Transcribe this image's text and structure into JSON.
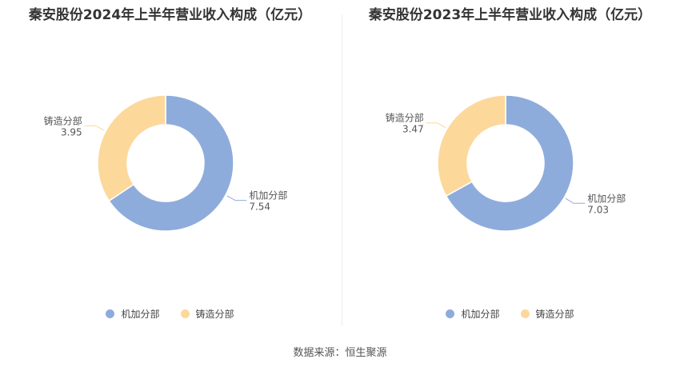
{
  "chart_data": [
    {
      "type": "pie",
      "title": "秦安股份2024年上半年营业收入构成（亿元）",
      "categories": [
        "机加分部",
        "铸造分部"
      ],
      "values": [
        7.54,
        3.95
      ],
      "value_labels": [
        "7.54",
        "3.95"
      ],
      "colors": [
        "#8eacdb",
        "#fdd89b"
      ],
      "legend": "bottom"
    },
    {
      "type": "pie",
      "title": "秦安股份2023年上半年营业收入构成（亿元）",
      "categories": [
        "机加分部",
        "铸造分部"
      ],
      "values": [
        7.03,
        3.47
      ],
      "value_labels": [
        "7.03",
        "3.47"
      ],
      "colors": [
        "#8eacdb",
        "#fdd89b"
      ],
      "legend": "bottom"
    }
  ],
  "footer": {
    "source": "数据来源：恒生聚源"
  }
}
